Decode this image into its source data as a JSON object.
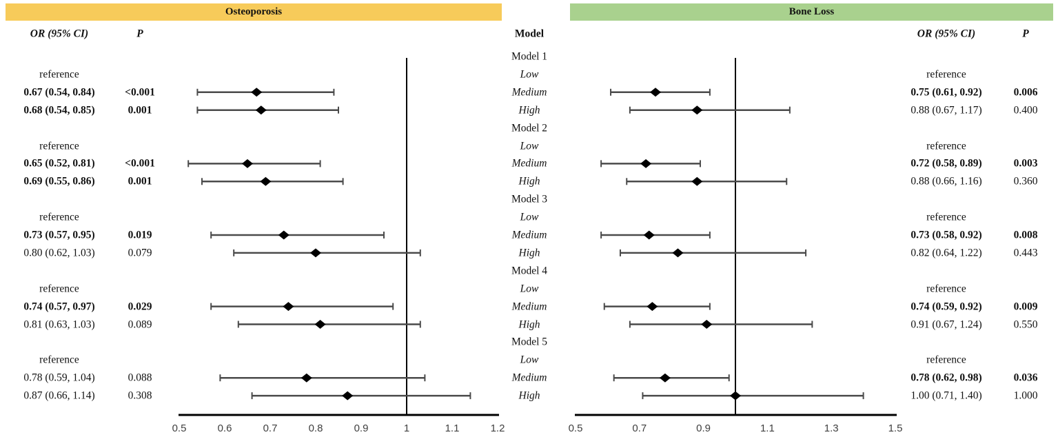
{
  "header": {
    "left_title": "Osteoporosis",
    "right_title": "Bone Loss",
    "model_header": "Model",
    "or_header": "OR (95% CI)",
    "p_header": "P"
  },
  "colors": {
    "left_header_bg": "#f7cb5a",
    "right_header_bg": "#a9d18e",
    "marker": "#000000",
    "whisker": "#4a4a4a",
    "axis_line": "#000000",
    "reference_line": "#000000",
    "tick_label": "#3f3f3f"
  },
  "chart_data": {
    "type": "forest",
    "panels": [
      {
        "side": "left",
        "title": "Osteoporosis",
        "xlim": [
          0.5,
          1.2
        ],
        "xticks": [
          "0.5",
          "0.6",
          "0.7",
          "0.8",
          "0.9",
          "1",
          "1.1",
          "1.2"
        ],
        "ref_line": 1
      },
      {
        "side": "right",
        "title": "Bone Loss",
        "xlim": [
          0.5,
          1.5
        ],
        "xticks": [
          "0.5",
          "0.7",
          "0.9",
          "1.1",
          "1.3",
          "1.5"
        ],
        "ref_line": 1
      }
    ],
    "reference_label": "reference",
    "groups": [
      {
        "model": "Model 1",
        "rows": [
          {
            "level": "Low",
            "left": {
              "text": "reference"
            },
            "right": {
              "text": "reference"
            }
          },
          {
            "level": "Medium",
            "left": {
              "text": "0.67 (0.54, 0.84)",
              "p": "<0.001",
              "bold": true,
              "est": 0.67,
              "lo": 0.54,
              "hi": 0.84
            },
            "right": {
              "text": "0.75 (0.61, 0.92)",
              "p": "0.006",
              "bold": true,
              "est": 0.75,
              "lo": 0.61,
              "hi": 0.92
            }
          },
          {
            "level": "High",
            "left": {
              "text": "0.68 (0.54, 0.85)",
              "p": "0.001",
              "bold": true,
              "est": 0.68,
              "lo": 0.54,
              "hi": 0.85
            },
            "right": {
              "text": "0.88 (0.67, 1.17)",
              "p": "0.400",
              "bold": false,
              "est": 0.88,
              "lo": 0.67,
              "hi": 1.17
            }
          }
        ]
      },
      {
        "model": "Model 2",
        "rows": [
          {
            "level": "Low",
            "left": {
              "text": "reference"
            },
            "right": {
              "text": "reference"
            }
          },
          {
            "level": "Medium",
            "left": {
              "text": "0.65 (0.52, 0.81)",
              "p": "<0.001",
              "bold": true,
              "est": 0.65,
              "lo": 0.52,
              "hi": 0.81
            },
            "right": {
              "text": "0.72 (0.58, 0.89)",
              "p": "0.003",
              "bold": true,
              "est": 0.72,
              "lo": 0.58,
              "hi": 0.89
            }
          },
          {
            "level": "High",
            "left": {
              "text": "0.69 (0.55, 0.86)",
              "p": "0.001",
              "bold": true,
              "est": 0.69,
              "lo": 0.55,
              "hi": 0.86
            },
            "right": {
              "text": "0.88 (0.66, 1.16)",
              "p": "0.360",
              "bold": false,
              "est": 0.88,
              "lo": 0.66,
              "hi": 1.16
            }
          }
        ]
      },
      {
        "model": "Model 3",
        "rows": [
          {
            "level": "Low",
            "left": {
              "text": "reference"
            },
            "right": {
              "text": "reference"
            }
          },
          {
            "level": "Medium",
            "left": {
              "text": "0.73 (0.57, 0.95)",
              "p": "0.019",
              "bold": true,
              "est": 0.73,
              "lo": 0.57,
              "hi": 0.95
            },
            "right": {
              "text": "0.73 (0.58, 0.92)",
              "p": "0.008",
              "bold": true,
              "est": 0.73,
              "lo": 0.58,
              "hi": 0.92
            }
          },
          {
            "level": "High",
            "left": {
              "text": "0.80 (0.62, 1.03)",
              "p": "0.079",
              "bold": false,
              "est": 0.8,
              "lo": 0.62,
              "hi": 1.03
            },
            "right": {
              "text": "0.82 (0.64, 1.22)",
              "p": "0.443",
              "bold": false,
              "est": 0.82,
              "lo": 0.64,
              "hi": 1.22
            }
          }
        ]
      },
      {
        "model": "Model 4",
        "rows": [
          {
            "level": "Low",
            "left": {
              "text": "reference"
            },
            "right": {
              "text": "reference"
            }
          },
          {
            "level": "Medium",
            "left": {
              "text": "0.74 (0.57, 0.97)",
              "p": "0.029",
              "bold": true,
              "est": 0.74,
              "lo": 0.57,
              "hi": 0.97
            },
            "right": {
              "text": "0.74 (0.59, 0.92)",
              "p": "0.009",
              "bold": true,
              "est": 0.74,
              "lo": 0.59,
              "hi": 0.92
            }
          },
          {
            "level": "High",
            "left": {
              "text": "0.81 (0.63, 1.03)",
              "p": "0.089",
              "bold": false,
              "est": 0.81,
              "lo": 0.63,
              "hi": 1.03
            },
            "right": {
              "text": "0.91 (0.67, 1.24)",
              "p": "0.550",
              "bold": false,
              "est": 0.91,
              "lo": 0.67,
              "hi": 1.24
            }
          }
        ]
      },
      {
        "model": "Model 5",
        "rows": [
          {
            "level": "Low",
            "left": {
              "text": "reference"
            },
            "right": {
              "text": "reference"
            }
          },
          {
            "level": "Medium",
            "left": {
              "text": "0.78 (0.59, 1.04)",
              "p": "0.088",
              "bold": false,
              "est": 0.78,
              "lo": 0.59,
              "hi": 1.04
            },
            "right": {
              "text": "0.78 (0.62, 0.98)",
              "p": "0.036",
              "bold": true,
              "est": 0.78,
              "lo": 0.62,
              "hi": 0.98
            }
          },
          {
            "level": "High",
            "left": {
              "text": "0.87 (0.66, 1.14)",
              "p": "0.308",
              "bold": false,
              "est": 0.87,
              "lo": 0.66,
              "hi": 1.14
            },
            "right": {
              "text": "1.00 (0.71, 1.40)",
              "p": "1.000",
              "bold": false,
              "est": 1.0,
              "lo": 0.71,
              "hi": 1.4
            }
          }
        ]
      }
    ]
  }
}
